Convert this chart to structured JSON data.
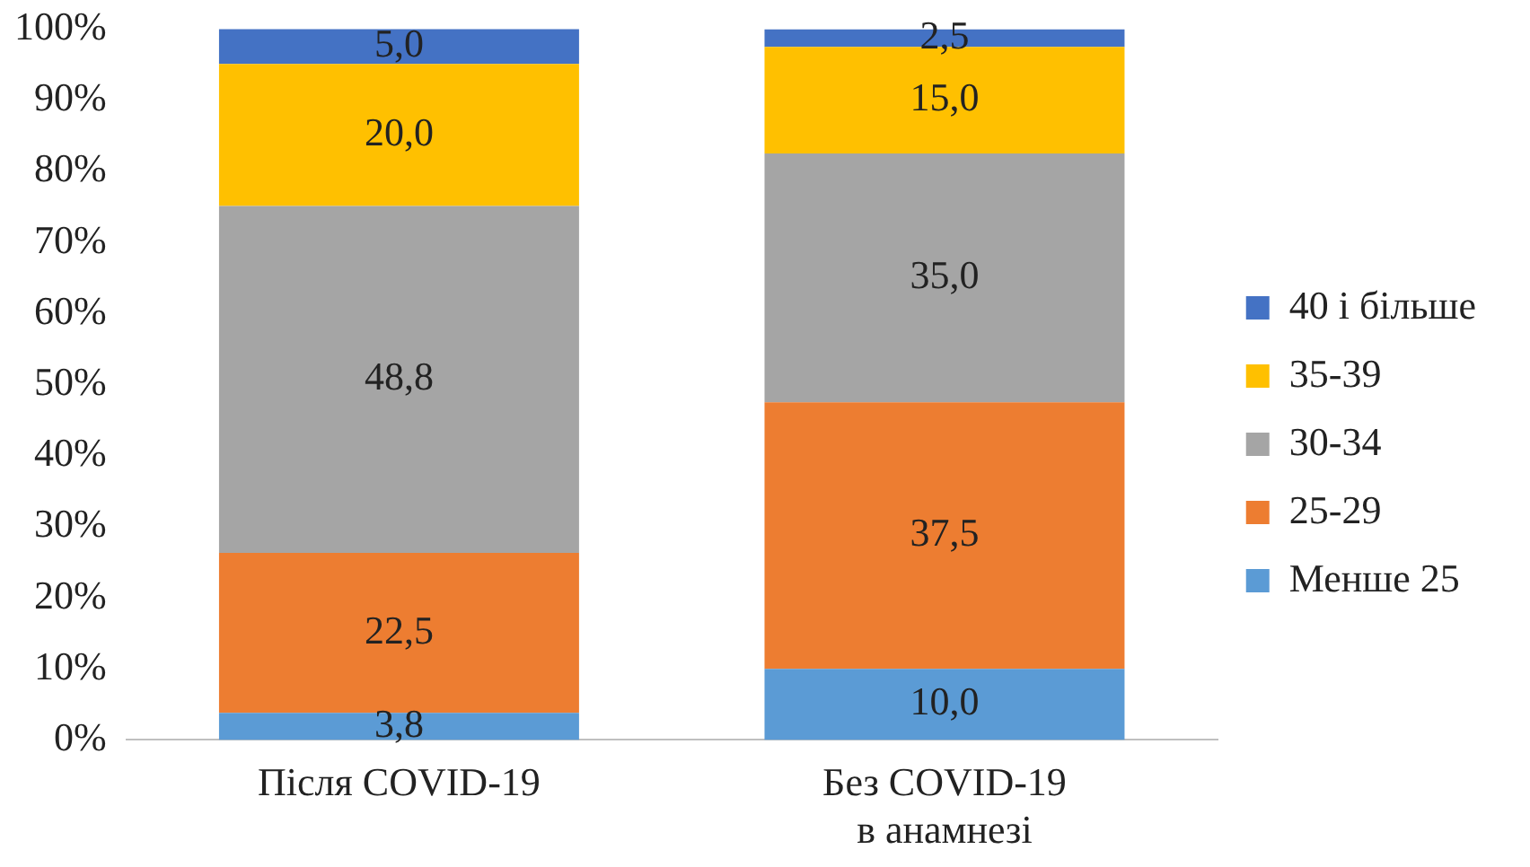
{
  "chart_data": {
    "type": "bar",
    "stacked": true,
    "categories": [
      "Після COVID-19",
      "Без COVID-19 в анамнезі"
    ],
    "series": [
      {
        "name": "Менше 25",
        "color": "#5b9bd5",
        "values": [
          3.8,
          10.0
        ],
        "value_labels": [
          "3,8",
          "10,0"
        ]
      },
      {
        "name": "25-29",
        "color": "#ed7d31",
        "values": [
          22.5,
          37.5
        ],
        "value_labels": [
          "22,5",
          "37,5"
        ]
      },
      {
        "name": "30-34",
        "color": "#a5a5a5",
        "values": [
          48.8,
          35.0
        ],
        "value_labels": [
          "48,8",
          "35,0"
        ]
      },
      {
        "name": "35-39",
        "color": "#ffc000",
        "values": [
          20.0,
          15.0
        ],
        "value_labels": [
          "20,0",
          "15,0"
        ]
      },
      {
        "name": "40 і більше",
        "color": "#4472c4",
        "values": [
          5.0,
          2.5
        ],
        "value_labels": [
          "5,0",
          "2,5"
        ]
      }
    ],
    "ylim": [
      0,
      100
    ],
    "yticks": [
      {
        "value": 0,
        "label": "0%"
      },
      {
        "value": 10,
        "label": "10%"
      },
      {
        "value": 20,
        "label": "20%"
      },
      {
        "value": 30,
        "label": "30%"
      },
      {
        "value": 40,
        "label": "40%"
      },
      {
        "value": 50,
        "label": "50%"
      },
      {
        "value": 60,
        "label": "60%"
      },
      {
        "value": 70,
        "label": "70%"
      },
      {
        "value": 80,
        "label": "80%"
      },
      {
        "value": 90,
        "label": "90%"
      },
      {
        "value": 100,
        "label": "100%"
      }
    ],
    "grid": false,
    "legend": "right"
  }
}
